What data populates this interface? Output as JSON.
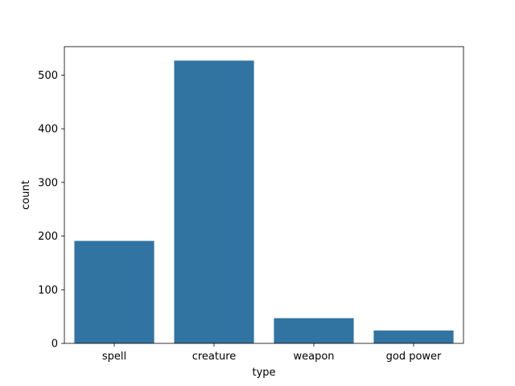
{
  "chart_data": {
    "type": "bar",
    "title": "",
    "xlabel": "type",
    "ylabel": "count",
    "categories": [
      "spell",
      "creature",
      "weapon",
      "god power"
    ],
    "values": [
      191,
      527,
      47,
      24
    ],
    "ylim": [
      0,
      553
    ],
    "yticks": [
      0,
      100,
      200,
      300,
      400,
      500
    ],
    "grid": false,
    "legend": "none",
    "bar_color": "#3274a1"
  }
}
